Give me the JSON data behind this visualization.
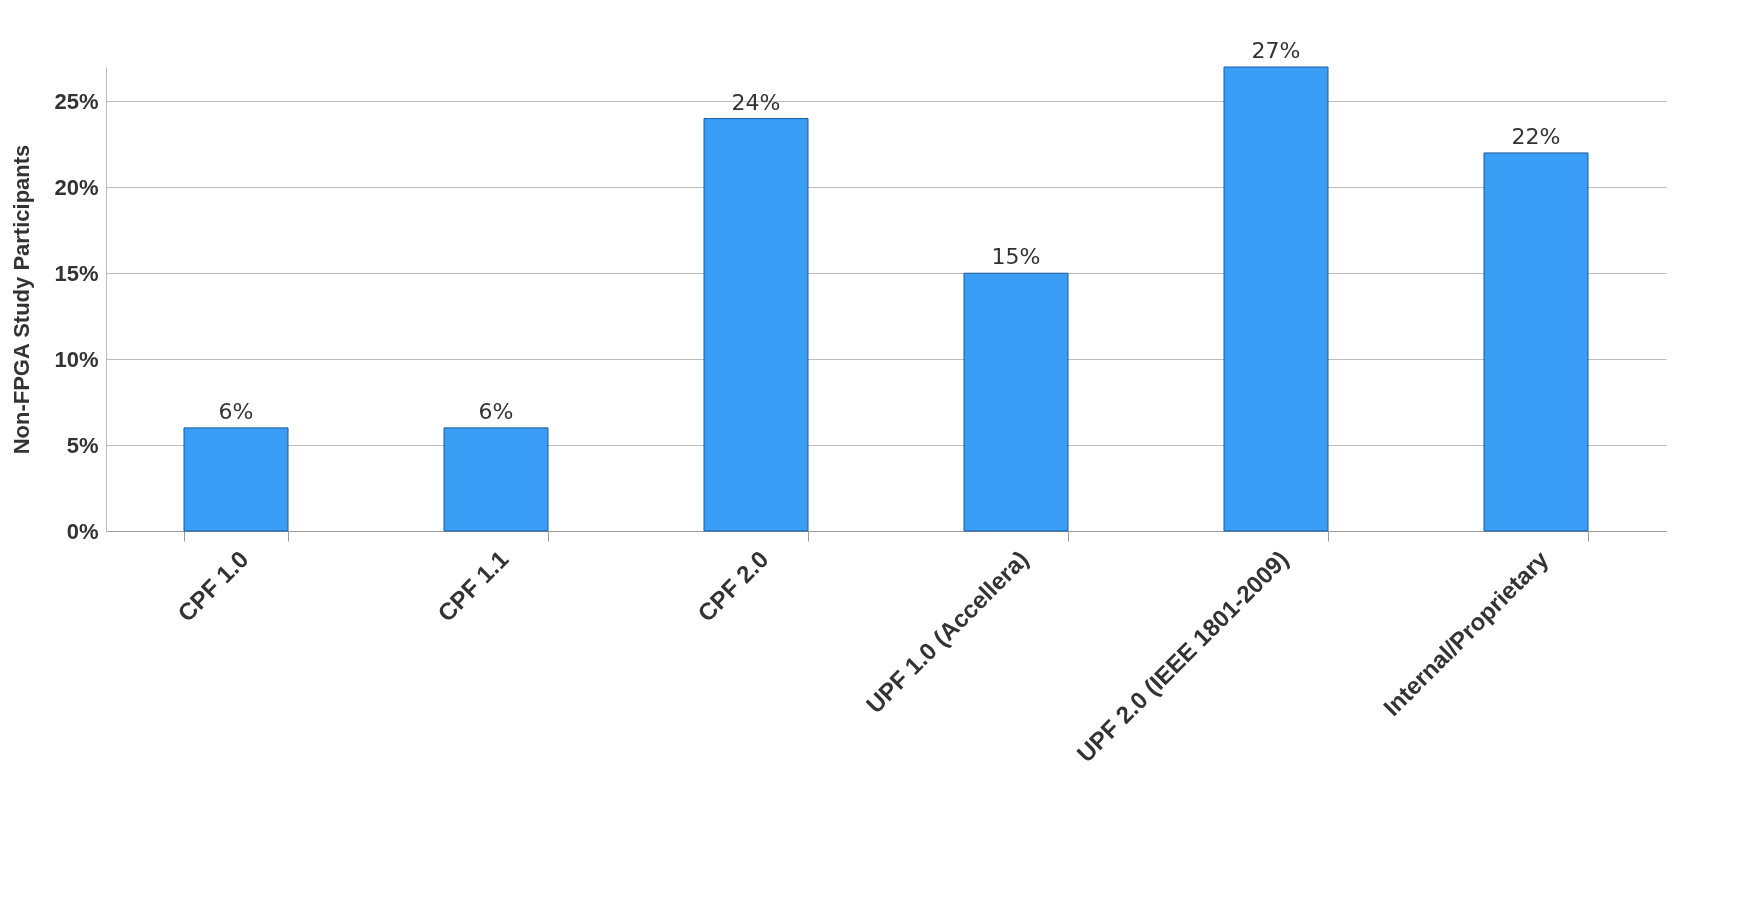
{
  "chart_data": {
    "type": "bar",
    "ylabel": "Non-FPGA Study Participants",
    "categories": [
      "CPF 1.0",
      "CPF 1.1",
      "CPF 2.0",
      "UPF 1.0 (Accellera)",
      "UPF 2.0 (IEEE 1801-2009)",
      "Internal/Proprietary"
    ],
    "values": [
      6,
      6,
      24,
      15,
      27,
      22
    ],
    "value_labels": [
      "6%",
      "6%",
      "24%",
      "15%",
      "27%",
      "22%"
    ],
    "color": "#3a9ef7",
    "ylim": [
      0,
      27
    ],
    "yticks": [
      {
        "value": 0,
        "label": "0%"
      },
      {
        "value": 5,
        "label": "5%"
      },
      {
        "value": 10,
        "label": "10%"
      },
      {
        "value": 15,
        "label": "15%"
      },
      {
        "value": 20,
        "label": "20%"
      },
      {
        "value": 25,
        "label": "25%"
      }
    ],
    "grid": "y"
  }
}
